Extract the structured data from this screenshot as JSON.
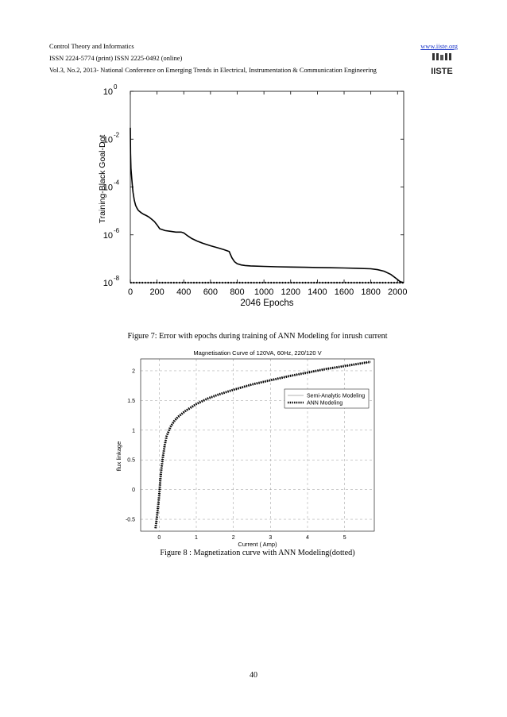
{
  "header": {
    "journal": "Control Theory and Informatics",
    "issn": "ISSN 2224-5774 (print) ISSN 2225-0492 (online)",
    "volume": "Vol.3, No.2, 2013- National Conference on Emerging Trends in Electrical, Instrumentation & Communication Engineering",
    "website": "www.iiste.org",
    "logo_text": "IISTE"
  },
  "figure7": {
    "caption": "Figure 7:  Error with epochs during training of ANN Modeling for inrush current",
    "chart_data": {
      "type": "line",
      "title": "",
      "xlabel": "2046 Epochs",
      "ylabel": "Training-Black  Goal-Dot",
      "yscale": "log",
      "xlim": [
        0,
        2046
      ],
      "ylim": [
        1e-08,
        1
      ],
      "xticks": [
        "0",
        "200",
        "400",
        "600",
        "800",
        "1000",
        "1200",
        "1400",
        "1600",
        "1800",
        "2000"
      ],
      "xtick_values": [
        0,
        200,
        400,
        600,
        800,
        1000,
        1200,
        1400,
        1600,
        1800,
        2000
      ],
      "yticks": [
        "10",
        "10",
        "10",
        "10",
        "10"
      ],
      "ytick_exponents": [
        "0",
        "-2",
        "-4",
        "-6",
        "-8"
      ],
      "ytick_values": [
        1,
        0.01,
        0.0001,
        1e-06,
        1e-08
      ],
      "series": [
        {
          "style": "solid",
          "x": [
            0,
            2,
            5,
            10,
            15,
            20,
            30,
            40,
            50,
            60,
            80,
            100,
            120,
            140,
            160,
            180,
            200,
            220,
            260,
            300,
            340,
            380,
            400,
            430,
            460,
            500,
            540,
            600,
            660,
            700,
            740,
            760,
            780,
            800,
            830,
            860,
            900,
            1000,
            1100,
            1200,
            1300,
            1400,
            1500,
            1600,
            1700,
            1800,
            1850,
            1900,
            1950,
            1990,
            2020,
            2046
          ],
          "y": [
            0.03,
            0.0025,
            0.0006,
            0.00025,
            0.00012,
            6e-05,
            2.8e-05,
            1.7e-05,
            1.3e-05,
            1.05e-05,
            8.5e-06,
            7.2e-06,
            6.4e-06,
            5.5e-06,
            4.5e-06,
            3.6e-06,
            2.6e-06,
            1.8e-06,
            1.5e-06,
            1.4e-06,
            1.3e-06,
            1.3e-06,
            1.2e-06,
            9e-07,
            7e-07,
            5.5e-07,
            4.5e-07,
            3.5e-07,
            2.8e-07,
            2.4e-07,
            2e-07,
            1.1e-07,
            7.5e-08,
            6.2e-08,
            5.5e-08,
            5.2e-08,
            5e-08,
            4.8e-08,
            4.6e-08,
            4.5e-08,
            4.4e-08,
            4.3e-08,
            4.2e-08,
            4.1e-08,
            4e-08,
            3.8e-08,
            3.5e-08,
            3e-08,
            2.2e-08,
            1.5e-08,
            1.1e-08,
            1e-08
          ]
        },
        {
          "style": "dotted",
          "x": [
            0,
            2046
          ],
          "y": [
            1e-08,
            1e-08
          ]
        }
      ]
    }
  },
  "figure8": {
    "caption": "Figure 8 : Magnetization curve with ANN Modeling(dotted)",
    "chart_data": {
      "type": "line",
      "title": "Magnetisation Curve of 120VA, 60Hz, 220/120 V",
      "xlabel": "Current ( Amp)",
      "ylabel": "flux linkage",
      "xlim": [
        -0.5,
        5.8
      ],
      "ylim": [
        -0.7,
        2.2
      ],
      "xticks": [
        "0",
        "1",
        "2",
        "3",
        "4",
        "5"
      ],
      "xtick_values": [
        0,
        1,
        2,
        3,
        4,
        5
      ],
      "yticks": [
        "2",
        "1.5",
        "1",
        "0.5",
        "0",
        "-0.5"
      ],
      "ytick_values": [
        2,
        1.5,
        1,
        0.5,
        0,
        -0.5
      ],
      "grid": true,
      "legend_position": "upper-right",
      "series": [
        {
          "name": "Semi-Analytic Modeling",
          "style": "solid",
          "x": [
            -0.1,
            -0.05,
            0,
            0.03,
            0.06,
            0.1,
            0.15,
            0.2,
            0.3,
            0.4,
            0.5,
            0.7,
            1.0,
            1.3,
            1.6,
            2.0,
            2.5,
            3.0,
            3.5,
            4.0,
            4.5,
            5.0,
            5.5,
            5.7
          ],
          "y": [
            -0.65,
            -0.4,
            -0.1,
            0.15,
            0.35,
            0.55,
            0.75,
            0.9,
            1.05,
            1.15,
            1.22,
            1.32,
            1.44,
            1.53,
            1.6,
            1.68,
            1.77,
            1.84,
            1.91,
            1.97,
            2.03,
            2.08,
            2.13,
            2.15
          ]
        },
        {
          "name": "ANN Modeling",
          "style": "dotted",
          "x": [
            -0.1,
            -0.05,
            0,
            0.03,
            0.06,
            0.1,
            0.15,
            0.2,
            0.3,
            0.4,
            0.5,
            0.7,
            1.0,
            1.3,
            1.6,
            2.0,
            2.5,
            3.0,
            3.5,
            4.0,
            4.5,
            5.0,
            5.5,
            5.7
          ],
          "y": [
            -0.65,
            -0.4,
            -0.1,
            0.15,
            0.35,
            0.55,
            0.75,
            0.9,
            1.05,
            1.15,
            1.22,
            1.32,
            1.44,
            1.53,
            1.6,
            1.68,
            1.77,
            1.84,
            1.91,
            1.97,
            2.03,
            2.08,
            2.13,
            2.15
          ]
        }
      ]
    }
  },
  "page_number": "40"
}
